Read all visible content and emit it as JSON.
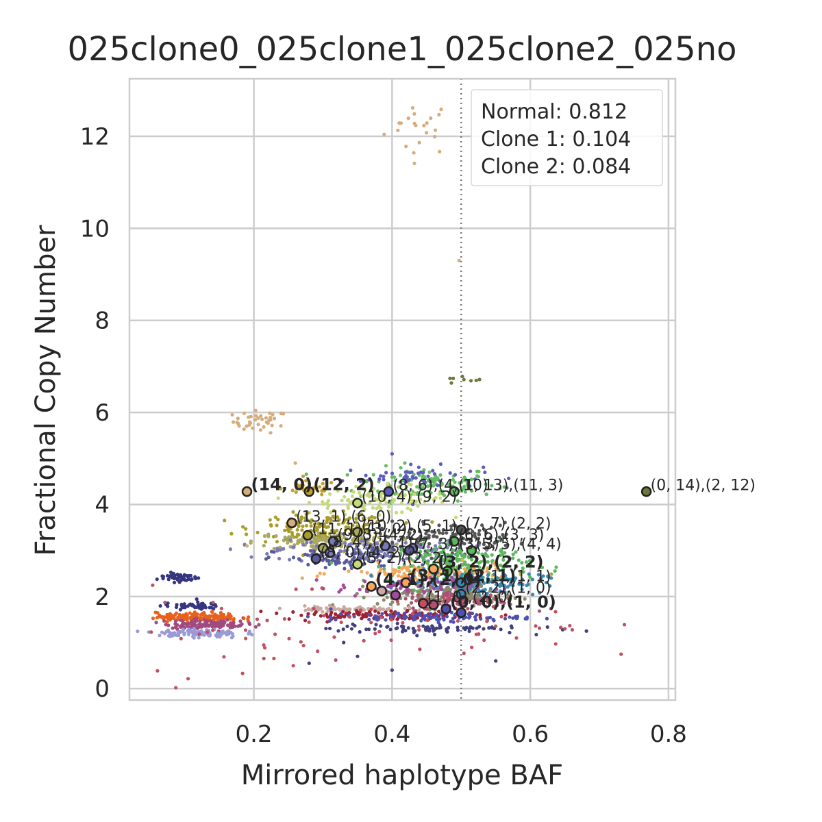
{
  "chart_data": {
    "type": "scatter",
    "title": "025clone0_025clone1_025clone2_025no",
    "xlabel": "Mirrored haplotype BAF",
    "ylabel": "Fractional Copy Number",
    "xlim": [
      0.02,
      0.81
    ],
    "ylim": [
      -0.25,
      13.25
    ],
    "xticks": [
      "0.2",
      "0.4",
      "0.6",
      "0.8"
    ],
    "yticks": [
      "0",
      "2",
      "4",
      "6",
      "8",
      "10",
      "12"
    ],
    "grid": true,
    "reference_line": {
      "x": 0.5,
      "style": "dotted"
    },
    "legend": {
      "position": "top-right",
      "entries": [
        "Normal: 0.812",
        "Clone 1: 0.104",
        "Clone 2: 0.084"
      ]
    },
    "clusters": [
      {
        "x": 0.44,
        "y": 12.2,
        "sx": 0.025,
        "sy": 0.3,
        "n": 22,
        "color": "#d6ac7a"
      },
      {
        "x": 0.21,
        "y": 5.8,
        "sx": 0.02,
        "sy": 0.12,
        "n": 40,
        "color": "#d6ac7a"
      },
      {
        "x": 0.5,
        "y": 6.7,
        "sx": 0.015,
        "sy": 0.05,
        "n": 8,
        "color": "#6b7a3a"
      },
      {
        "x": 0.45,
        "y": 4.45,
        "sx": 0.05,
        "sy": 0.18,
        "n": 120,
        "color": "#66bb66"
      },
      {
        "x": 0.43,
        "y": 4.6,
        "sx": 0.05,
        "sy": 0.12,
        "n": 50,
        "color": "#5b5bc0"
      },
      {
        "x": 0.38,
        "y": 4.1,
        "sx": 0.05,
        "sy": 0.15,
        "n": 110,
        "color": "#c5d97a"
      },
      {
        "x": 0.28,
        "y": 4.35,
        "sx": 0.02,
        "sy": 0.08,
        "n": 40,
        "color": "#c0a030"
      },
      {
        "x": 0.3,
        "y": 3.5,
        "sx": 0.05,
        "sy": 0.15,
        "n": 150,
        "color": "#a89c2c"
      },
      {
        "x": 0.3,
        "y": 3.2,
        "sx": 0.05,
        "sy": 0.1,
        "n": 130,
        "color": "#a8a860"
      },
      {
        "x": 0.37,
        "y": 3.0,
        "sx": 0.07,
        "sy": 0.12,
        "n": 160,
        "color": "#7a7ab8"
      },
      {
        "x": 0.33,
        "y": 2.8,
        "sx": 0.05,
        "sy": 0.12,
        "n": 80,
        "color": "#5a5a9a"
      },
      {
        "x": 0.48,
        "y": 3.3,
        "sx": 0.05,
        "sy": 0.15,
        "n": 120,
        "color": "#555555"
      },
      {
        "x": 0.5,
        "y": 2.7,
        "sx": 0.05,
        "sy": 0.2,
        "n": 200,
        "color": "#5cb85c"
      },
      {
        "x": 0.45,
        "y": 2.5,
        "sx": 0.06,
        "sy": 0.1,
        "n": 120,
        "color": "#f5a75a"
      },
      {
        "x": 0.52,
        "y": 2.3,
        "sx": 0.05,
        "sy": 0.12,
        "n": 150,
        "color": "#3a89b5"
      },
      {
        "x": 0.42,
        "y": 2.2,
        "sx": 0.05,
        "sy": 0.1,
        "n": 90,
        "color": "#a04aa0"
      },
      {
        "x": 0.48,
        "y": 2.0,
        "sx": 0.05,
        "sy": 0.12,
        "n": 150,
        "color": "#8a8a6a"
      },
      {
        "x": 0.5,
        "y": 1.9,
        "sx": 0.04,
        "sy": 0.1,
        "n": 100,
        "color": "#b05070"
      },
      {
        "x": 0.33,
        "y": 1.73,
        "sx": 0.04,
        "sy": 0.03,
        "n": 70,
        "color": "#c8aaa0"
      },
      {
        "x": 0.38,
        "y": 1.6,
        "sx": 0.07,
        "sy": 0.05,
        "n": 110,
        "color": "#a02030"
      },
      {
        "x": 0.45,
        "y": 1.55,
        "sx": 0.07,
        "sy": 0.05,
        "n": 100,
        "color": "#5050b0"
      },
      {
        "x": 0.45,
        "y": 1.3,
        "sx": 0.07,
        "sy": 0.05,
        "n": 80,
        "color": "#404080"
      },
      {
        "x": 0.09,
        "y": 2.42,
        "sx": 0.015,
        "sy": 0.05,
        "n": 50,
        "color": "#353580"
      },
      {
        "x": 0.11,
        "y": 1.8,
        "sx": 0.02,
        "sy": 0.04,
        "n": 50,
        "color": "#353580"
      },
      {
        "x": 0.12,
        "y": 1.55,
        "sx": 0.03,
        "sy": 0.05,
        "n": 150,
        "color": "#e8601c"
      },
      {
        "x": 0.13,
        "y": 1.4,
        "sx": 0.03,
        "sy": 0.05,
        "n": 120,
        "color": "#a04a80"
      },
      {
        "x": 0.12,
        "y": 1.2,
        "sx": 0.03,
        "sy": 0.05,
        "n": 100,
        "color": "#9a9ad8"
      },
      {
        "x": 0.2,
        "y": 1.2,
        "sx": 0.1,
        "sy": 0.5,
        "n": 40,
        "color": "#c05060"
      },
      {
        "x": 0.5,
        "y": 1.3,
        "sx": 0.1,
        "sy": 0.4,
        "n": 40,
        "color": "#c05060"
      }
    ],
    "stray_points": [
      {
        "x": 0.4,
        "y": 5.1,
        "color": "#5b5bc0"
      },
      {
        "x": 0.43,
        "y": 4.0,
        "color": "#5b5bc0"
      },
      {
        "x": 0.26,
        "y": 4.9,
        "color": "#d6ac7a"
      },
      {
        "x": 0.19,
        "y": 3.1,
        "color": "#d6ac7a"
      },
      {
        "x": 0.27,
        "y": 2.4,
        "color": "#d6ac7a"
      },
      {
        "x": 0.33,
        "y": 1.0,
        "color": "#404080"
      },
      {
        "x": 0.4,
        "y": 0.4,
        "color": "#404080"
      },
      {
        "x": 0.35,
        "y": 0.7,
        "color": "#404080"
      },
      {
        "x": 0.55,
        "y": 0.6,
        "color": "#404080"
      },
      {
        "x": 0.28,
        "y": 0.55,
        "color": "#404080"
      },
      {
        "x": 0.58,
        "y": 1.1,
        "color": "#c05060"
      },
      {
        "x": 0.65,
        "y": 1.3,
        "color": "#c05060"
      },
      {
        "x": 0.497,
        "y": 9.3,
        "color": "#d6ac7a"
      }
    ],
    "markers": [
      {
        "x": 0.19,
        "y": 4.28,
        "color": "#d6ac7a"
      },
      {
        "x": 0.28,
        "y": 4.28,
        "color": "#c0a030"
      },
      {
        "x": 0.395,
        "y": 4.28,
        "color": "#5b5bc0"
      },
      {
        "x": 0.49,
        "y": 4.28,
        "color": "#66bb66"
      },
      {
        "x": 0.768,
        "y": 4.28,
        "color": "#6b7a3a"
      },
      {
        "x": 0.35,
        "y": 4.03,
        "color": "#c5d97a"
      },
      {
        "x": 0.255,
        "y": 3.6,
        "color": "#d6ac7a"
      },
      {
        "x": 0.278,
        "y": 3.33,
        "color": "#a89c2c"
      },
      {
        "x": 0.35,
        "y": 3.4,
        "color": "#a8a860"
      },
      {
        "x": 0.315,
        "y": 3.2,
        "color": "#7a7ab8"
      },
      {
        "x": 0.3,
        "y": 3.05,
        "color": "#a8a860"
      },
      {
        "x": 0.31,
        "y": 2.95,
        "color": "#7a7ab8"
      },
      {
        "x": 0.29,
        "y": 2.82,
        "color": "#5a5a9a"
      },
      {
        "x": 0.39,
        "y": 3.1,
        "color": "#7a7ab8"
      },
      {
        "x": 0.43,
        "y": 3.05,
        "color": "#7a7ab8"
      },
      {
        "x": 0.425,
        "y": 3.0,
        "color": "#5a5a9a"
      },
      {
        "x": 0.5,
        "y": 3.45,
        "color": "#555555"
      },
      {
        "x": 0.49,
        "y": 3.2,
        "color": "#5cb85c"
      },
      {
        "x": 0.515,
        "y": 3.0,
        "color": "#5cb85c"
      },
      {
        "x": 0.35,
        "y": 2.7,
        "color": "#c5d97a"
      },
      {
        "x": 0.46,
        "y": 2.6,
        "color": "#f5a75a"
      },
      {
        "x": 0.48,
        "y": 2.55,
        "color": "#5cb85c"
      },
      {
        "x": 0.37,
        "y": 2.22,
        "color": "#f5a75a"
      },
      {
        "x": 0.385,
        "y": 2.12,
        "color": "#c8aaa0"
      },
      {
        "x": 0.42,
        "y": 2.3,
        "color": "#f5a75a"
      },
      {
        "x": 0.5,
        "y": 2.3,
        "color": "#3a89b5"
      },
      {
        "x": 0.5,
        "y": 2.05,
        "color": "#3a89b5"
      },
      {
        "x": 0.405,
        "y": 2.03,
        "color": "#a04aa0"
      },
      {
        "x": 0.445,
        "y": 1.85,
        "color": "#c05060"
      },
      {
        "x": 0.46,
        "y": 1.82,
        "color": "#b05070"
      },
      {
        "x": 0.478,
        "y": 1.73,
        "color": "#5050b0"
      },
      {
        "x": 0.5,
        "y": 1.65,
        "color": "#5050b0"
      }
    ],
    "annotations": [
      {
        "x": 0.19,
        "y": 4.28,
        "text": "(14, 0)",
        "bold": true
      },
      {
        "x": 0.28,
        "y": 4.28,
        "text": "(12, 2)",
        "bold": true
      },
      {
        "x": 0.395,
        "y": 4.28,
        "text": "(8, 6),(4, 10)",
        "bold": false
      },
      {
        "x": 0.49,
        "y": 4.28,
        "text": "(1, 13),(11, 3)",
        "bold": false
      },
      {
        "x": 0.768,
        "y": 4.28,
        "text": "(0, 14),(2, 12)",
        "bold": false
      },
      {
        "x": 0.35,
        "y": 4.03,
        "text": "(10, 4),(9, 2)",
        "bold": false
      },
      {
        "x": 0.255,
        "y": 3.6,
        "text": "(13, 1),(6, 0)",
        "bold": false
      },
      {
        "x": 0.5,
        "y": 3.45,
        "text": "(7, 7),(2, 2)",
        "bold": false
      },
      {
        "x": 0.278,
        "y": 3.33,
        "text": "(11, 1),(3, 0)",
        "bold": false
      },
      {
        "x": 0.35,
        "y": 3.4,
        "text": "(10, 2),(5, 1)",
        "bold": false
      },
      {
        "x": 0.49,
        "y": 3.2,
        "text": "(6, 6),(3, 3)",
        "bold": false
      },
      {
        "x": 0.515,
        "y": 3.0,
        "text": "(5, 5),(4, 4)",
        "bold": false
      },
      {
        "x": 0.315,
        "y": 3.2,
        "text": "(9, 3),(4, 2)",
        "bold": false
      },
      {
        "x": 0.3,
        "y": 3.05,
        "text": "(8, 4),(7, 1)",
        "bold": false
      },
      {
        "x": 0.29,
        "y": 2.82,
        "text": "(8, 0),(4, 2)",
        "bold": false
      },
      {
        "x": 0.425,
        "y": 3.0,
        "text": "(7, 3),(3, 3)",
        "bold": false
      },
      {
        "x": 0.35,
        "y": 2.7,
        "text": "(5, 2),(2, 2)",
        "bold": false
      },
      {
        "x": 0.46,
        "y": 2.6,
        "text": "(3, 2),(2, 2)",
        "bold": true
      },
      {
        "x": 0.5,
        "y": 2.3,
        "text": "(2, 1),(1, 1)",
        "bold": false
      },
      {
        "x": 0.37,
        "y": 2.22,
        "text": "(4, 1),(2, 0)",
        "bold": true
      },
      {
        "x": 0.42,
        "y": 2.3,
        "text": "(3, 1),(2, 1)",
        "bold": true
      },
      {
        "x": 0.5,
        "y": 2.05,
        "text": "(2, 2),(1, 0)",
        "bold": false
      },
      {
        "x": 0.445,
        "y": 1.85,
        "text": "(1, 0),(2, 0)",
        "bold": false
      },
      {
        "x": 0.478,
        "y": 1.73,
        "text": "(0, 0),(1, 0)",
        "bold": true
      }
    ]
  }
}
